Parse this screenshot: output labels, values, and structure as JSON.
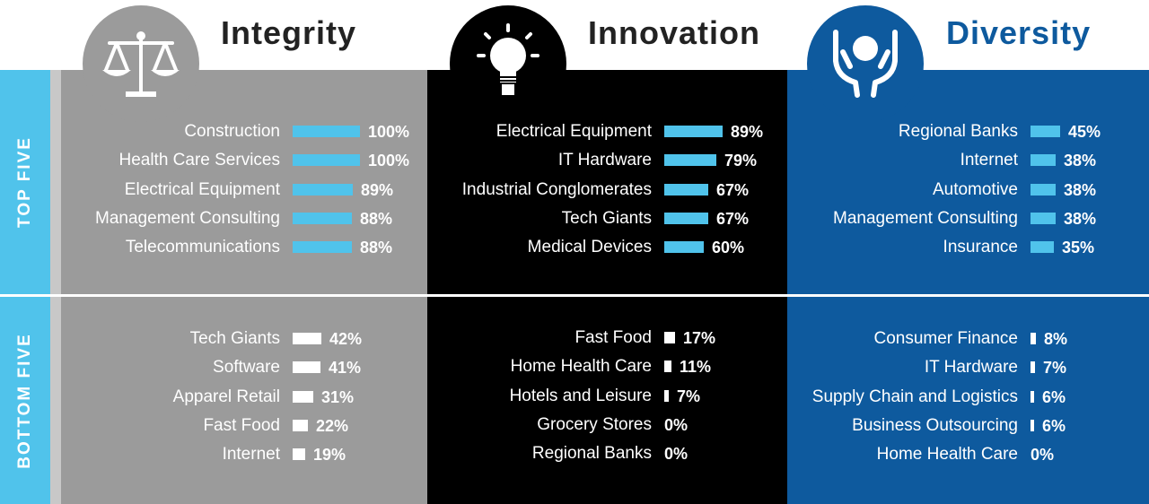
{
  "side_labels": {
    "top": "TOP FIVE",
    "bottom": "BOTTOM FIVE"
  },
  "colors": {
    "bar_top": "#50c3eb",
    "bar_bottom": "#ffffff",
    "integrity_bg": "#9b9b9b",
    "innovation_bg": "#000000",
    "diversity_bg": "#0e5a9e"
  },
  "columns": [
    {
      "key": "integrity",
      "title": "Integrity",
      "icon": "scales-icon"
    },
    {
      "key": "innovation",
      "title": "Innovation",
      "icon": "lightbulb-icon"
    },
    {
      "key": "diversity",
      "title": "Diversity",
      "icon": "hands-person-icon"
    }
  ],
  "chart_data": [
    {
      "type": "bar",
      "title": "Integrity",
      "group": "TOP FIVE",
      "categories": [
        "Construction",
        "Health Care Services",
        "Electrical Equipment",
        "Management Consulting",
        "Telecommunications"
      ],
      "values": [
        100,
        100,
        89,
        88,
        88
      ],
      "labels": [
        "100%",
        "100%",
        "89%",
        "88%",
        "88%"
      ]
    },
    {
      "type": "bar",
      "title": "Integrity",
      "group": "BOTTOM FIVE",
      "categories": [
        "Tech Giants",
        "Software",
        "Apparel Retail",
        "Fast Food",
        "Internet"
      ],
      "values": [
        42,
        41,
        31,
        22,
        19
      ],
      "labels": [
        "42%",
        "41%",
        "31%",
        "22%",
        "19%"
      ]
    },
    {
      "type": "bar",
      "title": "Innovation",
      "group": "TOP FIVE",
      "categories": [
        "Electrical Equipment",
        "IT Hardware",
        "Industrial Conglomerates",
        "Tech Giants",
        "Medical Devices"
      ],
      "values": [
        89,
        79,
        67,
        67,
        60
      ],
      "labels": [
        "89%",
        "79%",
        "67%",
        "67%",
        "60%"
      ]
    },
    {
      "type": "bar",
      "title": "Innovation",
      "group": "BOTTOM FIVE",
      "categories": [
        "Fast Food",
        "Home Health Care",
        "Hotels and Leisure",
        "Grocery Stores",
        "Regional Banks"
      ],
      "values": [
        17,
        11,
        7,
        0,
        0
      ],
      "labels": [
        "17%",
        "11%",
        "7%",
        "0%",
        "0%"
      ]
    },
    {
      "type": "bar",
      "title": "Diversity",
      "group": "TOP FIVE",
      "categories": [
        "Regional Banks",
        "Internet",
        "Automotive",
        "Management Consulting",
        "Insurance"
      ],
      "values": [
        45,
        38,
        38,
        38,
        35
      ],
      "labels": [
        "45%",
        "38%",
        "38%",
        "38%",
        "35%"
      ]
    },
    {
      "type": "bar",
      "title": "Diversity",
      "group": "BOTTOM FIVE",
      "categories": [
        "Consumer Finance",
        "IT Hardware",
        "Supply Chain and Logistics",
        "Business Outsourcing",
        "Home Health Care"
      ],
      "values": [
        8,
        7,
        6,
        6,
        0
      ],
      "labels": [
        "8%",
        "7%",
        "6%",
        "6%",
        "0%"
      ]
    }
  ]
}
